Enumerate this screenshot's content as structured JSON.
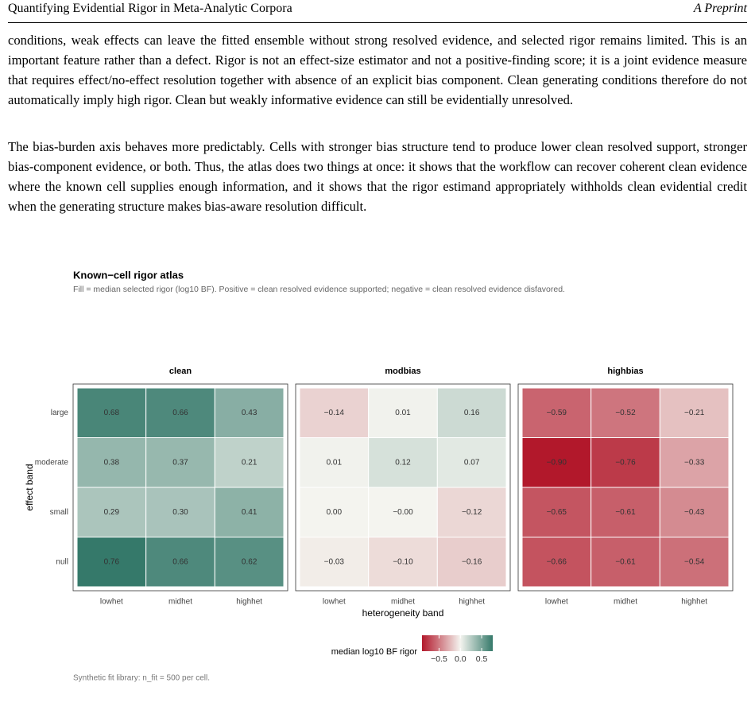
{
  "header": {
    "title": "Quantifying Evidential Rigor in Meta-Analytic Corpora",
    "tag": "A Preprint"
  },
  "paragraphs": [
    "conditions, weak effects can leave the fitted ensemble without strong resolved evidence, and selected rigor remains limited. This is an important feature rather than a defect. Rigor is not an effect-size estimator and not a positive-finding score; it is a joint evidence measure that requires effect/no-effect resolution together with absence of an explicit bias component. Clean generating conditions therefore do not automatically imply high rigor. Clean but weakly informative evidence can still be evidentially unresolved.",
    "The bias-burden axis behaves more predictably. Cells with stronger bias structure tend to produce lower clean resolved support, stronger bias-component evidence, or both. Thus, the atlas does two things at once: it shows that the workflow can recover coherent clean evidence where the known cell supplies enough information, and it shows that the rigor estimand appropriately withholds clean evidential credit when the generating structure makes bias-aware resolution difficult."
  ],
  "chart_data": {
    "type": "heatmap",
    "title": "Known−cell rigor atlas",
    "subtitle": "Fill = median selected rigor (log10 BF). Positive = clean resolved evidence supported; negative = clean resolved evidence disfavored.",
    "x_label": "heterogeneity band",
    "y_label": "effect band",
    "x": [
      "lowhet",
      "midhet",
      "highhet"
    ],
    "y": [
      "large",
      "moderate",
      "small",
      "null"
    ],
    "panels": [
      {
        "name": "clean",
        "values": [
          [
            0.68,
            0.66,
            0.43
          ],
          [
            0.38,
            0.37,
            0.21
          ],
          [
            0.29,
            0.3,
            0.41
          ],
          [
            0.76,
            0.66,
            0.62
          ]
        ],
        "value_labels": [
          [
            "0.68",
            "0.66",
            "0.43"
          ],
          [
            "0.38",
            "0.37",
            "0.21"
          ],
          [
            "0.29",
            "0.30",
            "0.41"
          ],
          [
            "0.76",
            "0.66",
            "0.62"
          ]
        ]
      },
      {
        "name": "modbias",
        "values": [
          [
            -0.14,
            0.01,
            0.16
          ],
          [
            0.01,
            0.12,
            0.07
          ],
          [
            0.0,
            0,
            -0.12
          ],
          [
            -0.03,
            -0.1,
            -0.16
          ]
        ],
        "value_labels": [
          [
            "−0.14",
            "0.01",
            "0.16"
          ],
          [
            "0.01",
            "0.12",
            "0.07"
          ],
          [
            "0.00",
            "−0.00",
            "−0.12"
          ],
          [
            "−0.03",
            "−0.10",
            "−0.16"
          ]
        ]
      },
      {
        "name": "highbias",
        "values": [
          [
            -0.59,
            -0.52,
            -0.21
          ],
          [
            -0.9,
            -0.76,
            -0.33
          ],
          [
            -0.65,
            -0.61,
            -0.43
          ],
          [
            -0.66,
            -0.61,
            -0.54
          ]
        ],
        "value_labels": [
          [
            "−0.59",
            "−0.52",
            "−0.21"
          ],
          [
            "−0.90",
            "−0.76",
            "−0.33"
          ],
          [
            "−0.65",
            "−0.61",
            "−0.43"
          ],
          [
            "−0.66",
            "−0.61",
            "−0.54"
          ]
        ]
      }
    ],
    "colorscale": {
      "low": "#b2182b",
      "mid": "#f4f4ef",
      "high": "#35796a",
      "lim": [
        -0.9,
        0.76
      ]
    },
    "legend_title": "median log10 BF rigor",
    "legend_ticks": [
      {
        "value": -0.5,
        "label": "−0.5"
      },
      {
        "value": 0.0,
        "label": "0.0"
      },
      {
        "value": 0.5,
        "label": "0.5"
      }
    ],
    "caption": "Synthetic fit library: n_fit = 500 per cell."
  }
}
